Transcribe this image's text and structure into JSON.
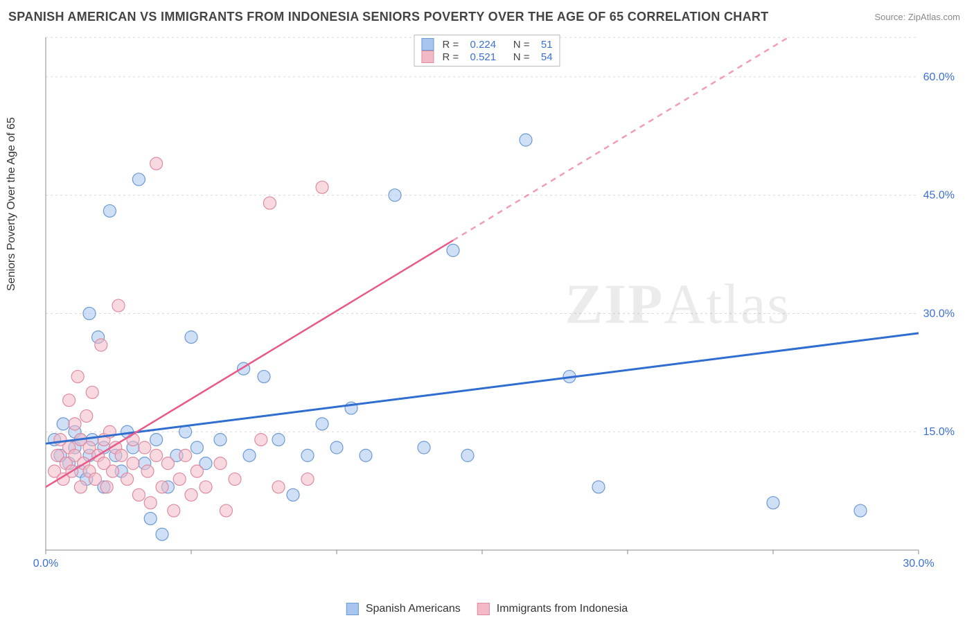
{
  "title": "SPANISH AMERICAN VS IMMIGRANTS FROM INDONESIA SENIORS POVERTY OVER THE AGE OF 65 CORRELATION CHART",
  "source": "Source: ZipAtlas.com",
  "y_axis_title": "Seniors Poverty Over the Age of 65",
  "watermark_bold": "ZIP",
  "watermark_rest": "Atlas",
  "chart": {
    "type": "scatter",
    "x_range": [
      0,
      30
    ],
    "y_range": [
      0,
      65
    ],
    "x_ticks": [
      0,
      5,
      10,
      15,
      20,
      25,
      30
    ],
    "x_tick_labels": {
      "0": "0.0%",
      "30": "30.0%"
    },
    "y_ticks": [
      15,
      30,
      45,
      60
    ],
    "y_tick_labels": {
      "15": "15.0%",
      "30": "30.0%",
      "45": "45.0%",
      "60": "60.0%"
    },
    "grid_color": "#d9d9d9",
    "axis_color": "#888888",
    "background_color": "#ffffff",
    "marker_radius": 9,
    "marker_opacity": 0.55,
    "series": [
      {
        "name": "Spanish Americans",
        "color_fill": "#a7c5ee",
        "color_stroke": "#6b9ad4",
        "r_value": "0.224",
        "n_value": "51",
        "trend": {
          "x1": 0,
          "y1": 13.5,
          "x2": 30,
          "y2": 27.5,
          "solid_until_x": 30,
          "color": "#2f6dd0",
          "width": 3
        },
        "points": [
          [
            0.3,
            14
          ],
          [
            0.5,
            12
          ],
          [
            0.6,
            16
          ],
          [
            0.8,
            11
          ],
          [
            1.0,
            13
          ],
          [
            1.0,
            15
          ],
          [
            1.2,
            10
          ],
          [
            1.2,
            14
          ],
          [
            1.4,
            9
          ],
          [
            1.5,
            30
          ],
          [
            1.5,
            12
          ],
          [
            1.6,
            14
          ],
          [
            1.8,
            27
          ],
          [
            2.0,
            8
          ],
          [
            2.0,
            13
          ],
          [
            2.2,
            43
          ],
          [
            2.4,
            12
          ],
          [
            2.6,
            10
          ],
          [
            2.8,
            15
          ],
          [
            3.0,
            13
          ],
          [
            3.2,
            47
          ],
          [
            3.4,
            11
          ],
          [
            3.6,
            4
          ],
          [
            3.8,
            14
          ],
          [
            4.0,
            2
          ],
          [
            4.2,
            8
          ],
          [
            4.5,
            12
          ],
          [
            4.8,
            15
          ],
          [
            5.0,
            27
          ],
          [
            5.2,
            13
          ],
          [
            5.5,
            11
          ],
          [
            6.0,
            14
          ],
          [
            6.8,
            23
          ],
          [
            7.0,
            12
          ],
          [
            7.5,
            22
          ],
          [
            8.0,
            14
          ],
          [
            8.5,
            7
          ],
          [
            9.0,
            12
          ],
          [
            9.5,
            16
          ],
          [
            10.0,
            13
          ],
          [
            10.5,
            18
          ],
          [
            11.0,
            12
          ],
          [
            12.0,
            45
          ],
          [
            13.0,
            13
          ],
          [
            14.0,
            38
          ],
          [
            14.5,
            12
          ],
          [
            16.5,
            52
          ],
          [
            18.0,
            22
          ],
          [
            19.0,
            8
          ],
          [
            25.0,
            6
          ],
          [
            28.0,
            5
          ]
        ]
      },
      {
        "name": "Immigrants from Indonesia",
        "color_fill": "#f3b9c7",
        "color_stroke": "#e08aa0",
        "r_value": "0.521",
        "n_value": "54",
        "trend": {
          "x1": 0,
          "y1": 8,
          "x2": 30,
          "y2": 75,
          "solid_until_x": 14,
          "color": "#e85a8a",
          "width": 2.5
        },
        "points": [
          [
            0.3,
            10
          ],
          [
            0.4,
            12
          ],
          [
            0.5,
            14
          ],
          [
            0.6,
            9
          ],
          [
            0.7,
            11
          ],
          [
            0.8,
            13
          ],
          [
            0.8,
            19
          ],
          [
            0.9,
            10
          ],
          [
            1.0,
            16
          ],
          [
            1.0,
            12
          ],
          [
            1.1,
            22
          ],
          [
            1.2,
            8
          ],
          [
            1.2,
            14
          ],
          [
            1.3,
            11
          ],
          [
            1.4,
            17
          ],
          [
            1.5,
            10
          ],
          [
            1.5,
            13
          ],
          [
            1.6,
            20
          ],
          [
            1.7,
            9
          ],
          [
            1.8,
            12
          ],
          [
            1.9,
            26
          ],
          [
            2.0,
            14
          ],
          [
            2.0,
            11
          ],
          [
            2.1,
            8
          ],
          [
            2.2,
            15
          ],
          [
            2.3,
            10
          ],
          [
            2.4,
            13
          ],
          [
            2.5,
            31
          ],
          [
            2.6,
            12
          ],
          [
            2.8,
            9
          ],
          [
            3.0,
            14
          ],
          [
            3.0,
            11
          ],
          [
            3.2,
            7
          ],
          [
            3.4,
            13
          ],
          [
            3.5,
            10
          ],
          [
            3.6,
            6
          ],
          [
            3.8,
            12
          ],
          [
            3.8,
            49
          ],
          [
            4.0,
            8
          ],
          [
            4.2,
            11
          ],
          [
            4.4,
            5
          ],
          [
            4.6,
            9
          ],
          [
            4.8,
            12
          ],
          [
            5.0,
            7
          ],
          [
            5.2,
            10
          ],
          [
            5.5,
            8
          ],
          [
            6.0,
            11
          ],
          [
            6.2,
            5
          ],
          [
            6.5,
            9
          ],
          [
            7.4,
            14
          ],
          [
            7.7,
            44
          ],
          [
            8.0,
            8
          ],
          [
            9.5,
            46
          ],
          [
            9.0,
            9
          ]
        ]
      }
    ]
  },
  "legend_top_rows": [
    {
      "swatch_fill": "#a7c5ee",
      "swatch_stroke": "#6b9ad4",
      "r": "0.224",
      "n": "51"
    },
    {
      "swatch_fill": "#f3b9c7",
      "swatch_stroke": "#e08aa0",
      "r": "0.521",
      "n": "54"
    }
  ],
  "labels": {
    "r_label": "R =",
    "n_label": "N ="
  }
}
